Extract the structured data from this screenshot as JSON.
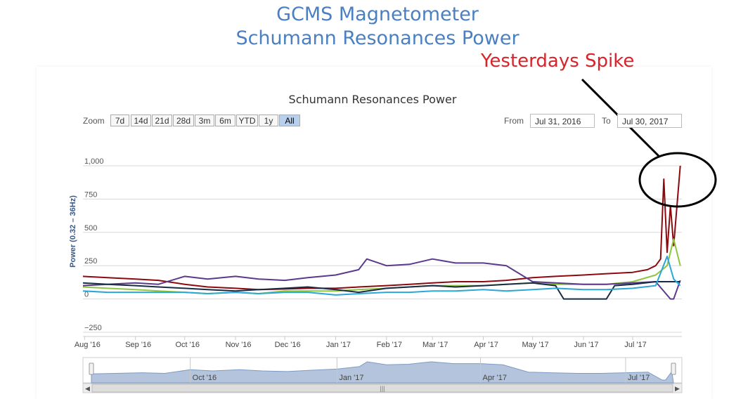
{
  "page": {
    "title_line1": "GCMS Magnetometer",
    "title_line2": "Schumann Resonances Power",
    "annotation": "Yesterdays Spike"
  },
  "toolbar": {
    "zoom_label": "Zoom",
    "buttons": [
      "7d",
      "14d",
      "21d",
      "28d",
      "3m",
      "6m",
      "YTD",
      "1y",
      "All"
    ],
    "selected": "All",
    "from_label": "From",
    "from_value": "Jul 31, 2016",
    "to_label": "To",
    "to_value": "Jul 30, 2017"
  },
  "colors": {
    "title": "#4a7fc1",
    "annotation": "#d9232a",
    "series": [
      "#8b0a10",
      "#8dc63f",
      "#5b3a8c",
      "#1a2b44",
      "#2aa7d6"
    ],
    "navigator_fill": "#b3c4dc",
    "navigator_line": "#7d9bc4"
  },
  "chart_data": {
    "type": "line",
    "title": "Schumann Resonances Power",
    "ylabel": "Power (0.32 – 36Hz)",
    "ylim": [
      -250,
      1000
    ],
    "yticks": [
      -250,
      0,
      250,
      500,
      750,
      1000
    ],
    "ytick_labels": [
      "−250",
      "0",
      "250",
      "500",
      "750",
      "1,000"
    ],
    "xlim": [
      "2016-07-31",
      "2017-07-31"
    ],
    "xticks": [
      "2016-08-01",
      "2016-09-01",
      "2016-10-01",
      "2016-11-01",
      "2016-12-01",
      "2017-01-01",
      "2017-02-01",
      "2017-03-01",
      "2017-04-01",
      "2017-05-01",
      "2017-06-01",
      "2017-07-01"
    ],
    "xtick_labels": [
      "Aug '16",
      "Sep '16",
      "Oct '16",
      "Nov '16",
      "Dec '16",
      "Jan '17",
      "Feb '17",
      "Mar '17",
      "Apr '17",
      "May '17",
      "Jun '17",
      "Jul '17"
    ],
    "navigator_labels": [
      "Oct '16",
      "Jan '17",
      "Apr '17",
      "Jul '17"
    ],
    "grid": true,
    "series": [
      {
        "x": [
          "2016-07-31",
          "2016-08-15",
          "2016-09-01",
          "2016-09-15",
          "2016-10-01",
          "2016-10-15",
          "2016-11-01",
          "2016-11-15",
          "2016-12-01",
          "2016-12-15",
          "2017-01-01",
          "2017-01-15",
          "2017-02-01",
          "2017-02-15",
          "2017-03-01",
          "2017-03-15",
          "2017-04-01",
          "2017-04-15",
          "2017-05-01",
          "2017-05-15",
          "2017-06-01",
          "2017-06-15",
          "2017-07-01",
          "2017-07-10",
          "2017-07-15",
          "2017-07-18",
          "2017-07-20",
          "2017-07-22",
          "2017-07-24",
          "2017-07-26",
          "2017-07-28",
          "2017-07-30"
        ],
        "y": [
          170,
          160,
          150,
          140,
          110,
          90,
          80,
          70,
          75,
          80,
          80,
          90,
          100,
          110,
          120,
          130,
          130,
          140,
          160,
          170,
          180,
          190,
          200,
          220,
          250,
          300,
          900,
          350,
          700,
          400,
          700,
          1000
        ]
      },
      {
        "x": [
          "2016-07-31",
          "2016-08-15",
          "2016-09-01",
          "2016-09-15",
          "2016-10-01",
          "2016-10-15",
          "2016-11-01",
          "2016-11-15",
          "2016-12-01",
          "2016-12-15",
          "2017-01-01",
          "2017-01-15",
          "2017-02-01",
          "2017-02-15",
          "2017-03-01",
          "2017-03-15",
          "2017-04-01",
          "2017-04-15",
          "2017-05-01",
          "2017-05-15",
          "2017-06-01",
          "2017-06-15",
          "2017-07-01",
          "2017-07-15",
          "2017-07-22",
          "2017-07-26",
          "2017-07-30"
        ],
        "y": [
          90,
          80,
          70,
          60,
          50,
          40,
          50,
          40,
          60,
          60,
          60,
          70,
          80,
          90,
          100,
          100,
          100,
          110,
          120,
          110,
          110,
          110,
          130,
          180,
          250,
          450,
          250
        ]
      },
      {
        "x": [
          "2016-07-31",
          "2016-08-15",
          "2016-09-01",
          "2016-09-15",
          "2016-10-01",
          "2016-10-15",
          "2016-11-01",
          "2016-11-15",
          "2016-12-01",
          "2016-12-15",
          "2017-01-01",
          "2017-01-15",
          "2017-01-20",
          "2017-02-01",
          "2017-02-15",
          "2017-03-01",
          "2017-03-15",
          "2017-04-01",
          "2017-04-15",
          "2017-05-01",
          "2017-05-15",
          "2017-06-01",
          "2017-06-15",
          "2017-07-01",
          "2017-07-15",
          "2017-07-24",
          "2017-07-26",
          "2017-07-30"
        ],
        "y": [
          100,
          110,
          120,
          110,
          170,
          150,
          170,
          150,
          140,
          160,
          180,
          220,
          300,
          250,
          260,
          300,
          270,
          270,
          250,
          130,
          120,
          110,
          110,
          120,
          130,
          0,
          0,
          140
        ]
      },
      {
        "x": [
          "2016-07-31",
          "2016-08-15",
          "2016-09-01",
          "2016-09-15",
          "2016-10-01",
          "2016-10-15",
          "2016-11-01",
          "2016-11-15",
          "2016-12-01",
          "2016-12-15",
          "2017-01-01",
          "2017-01-15",
          "2017-02-01",
          "2017-02-15",
          "2017-03-01",
          "2017-03-15",
          "2017-04-01",
          "2017-04-15",
          "2017-05-01",
          "2017-05-15",
          "2017-05-20",
          "2017-06-01",
          "2017-06-15",
          "2017-06-20",
          "2017-07-01",
          "2017-07-15",
          "2017-07-30"
        ],
        "y": [
          120,
          110,
          100,
          90,
          80,
          70,
          60,
          70,
          80,
          90,
          70,
          50,
          80,
          90,
          100,
          90,
          100,
          110,
          120,
          100,
          0,
          0,
          0,
          100,
          110,
          130,
          130
        ]
      },
      {
        "x": [
          "2016-07-31",
          "2016-08-15",
          "2016-09-01",
          "2016-09-15",
          "2016-10-01",
          "2016-10-15",
          "2016-11-01",
          "2016-11-15",
          "2016-12-01",
          "2016-12-15",
          "2017-01-01",
          "2017-01-15",
          "2017-02-01",
          "2017-02-15",
          "2017-03-01",
          "2017-03-15",
          "2017-04-01",
          "2017-04-15",
          "2017-05-01",
          "2017-05-15",
          "2017-06-01",
          "2017-06-15",
          "2017-07-01",
          "2017-07-15",
          "2017-07-22",
          "2017-07-26",
          "2017-07-30"
        ],
        "y": [
          60,
          50,
          50,
          50,
          50,
          40,
          50,
          40,
          50,
          50,
          30,
          40,
          50,
          50,
          60,
          60,
          70,
          60,
          70,
          80,
          70,
          70,
          80,
          100,
          320,
          150,
          100
        ]
      }
    ]
  }
}
